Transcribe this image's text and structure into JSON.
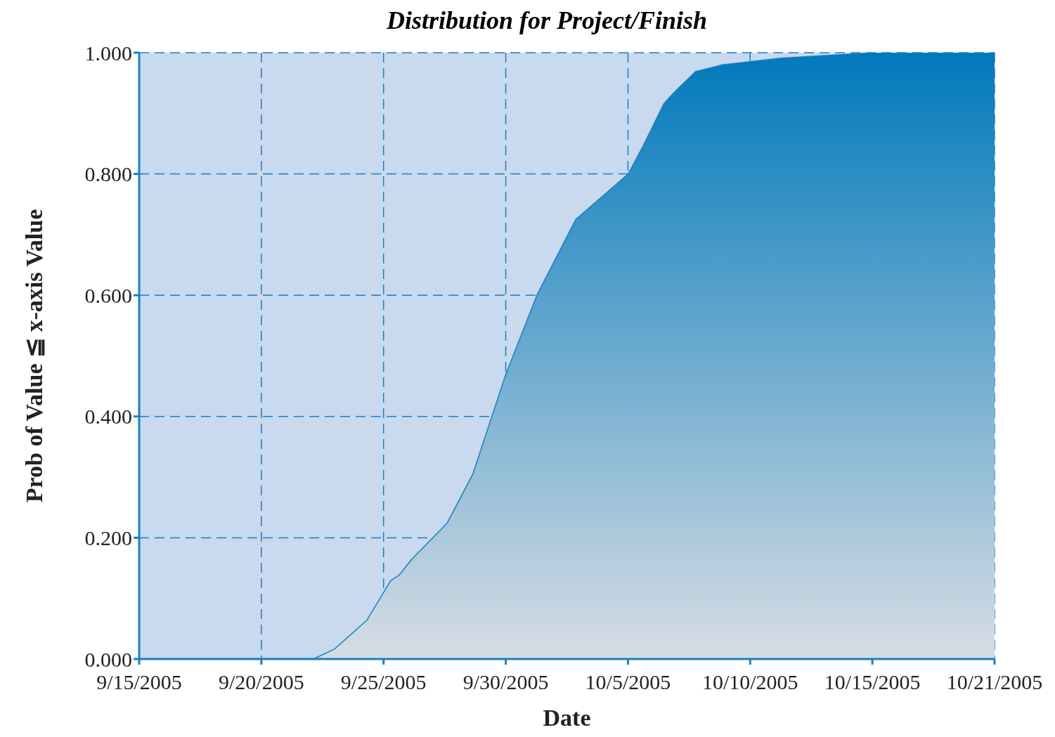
{
  "chart_data": {
    "type": "area",
    "title": "Distribution for Project/Finish",
    "xlabel": "Date",
    "ylabel": "Prob of Value ≦ x-axis Value",
    "x": [
      "2005-09-15T00:00",
      "2005-09-22T08:00",
      "2005-09-23T05:00",
      "2005-09-24T14:00",
      "2005-09-25T14:00",
      "2005-09-25T23:00",
      "2005-09-26T11:00",
      "2005-09-27T23:00",
      "2005-09-29T01:00",
      "2005-09-30T10:00",
      "2005-10-01T18:00",
      "2005-10-03T09:00",
      "2005-10-05T14:00",
      "2005-10-06T05:00",
      "2005-10-07T02:00",
      "2005-10-07T12:00",
      "2005-10-08T10:00",
      "2005-10-09T13:00",
      "2005-10-12T00:00",
      "2005-10-15T21:00",
      "2005-10-21T00:00"
    ],
    "series": [
      {
        "color": "#0079bc",
        "values": [
          0,
          0,
          0.016,
          0.064,
          0.129,
          0.139,
          0.164,
          0.224,
          0.305,
          0.468,
          0.601,
          0.725,
          0.8,
          0.846,
          0.916,
          0.934,
          0.969,
          0.98,
          0.991,
          1,
          1
        ]
      }
    ],
    "xlim": [
      "2005-09-15T00:00",
      "2005-10-21T00:00"
    ],
    "xticks": [
      {
        "value": "2005-09-15T00:00",
        "label": "9/15/2005"
      },
      {
        "value": "2005-09-20T03:26",
        "label": "9/20/2005"
      },
      {
        "value": "2005-09-25T06:51",
        "label": "9/25/2005"
      },
      {
        "value": "2005-09-30T10:17",
        "label": "9/30/2005"
      },
      {
        "value": "2005-10-05T13:43",
        "label": "10/5/2005"
      },
      {
        "value": "2005-10-10T17:09",
        "label": "10/10/2005"
      },
      {
        "value": "2005-10-15T20:34",
        "label": "10/15/2005"
      },
      {
        "value": "2005-10-21T00:00",
        "label": "10/21/2005"
      }
    ],
    "ylim": [
      0,
      1
    ],
    "yticks": [
      {
        "value": 0,
        "label": "0.000"
      },
      {
        "value": 0.2,
        "label": "0.200"
      },
      {
        "value": 0.4,
        "label": "0.400"
      },
      {
        "value": 0.6,
        "label": "0.600"
      },
      {
        "value": 0.8,
        "label": "0.800"
      },
      {
        "value": 1,
        "label": "1.000"
      }
    ],
    "grid": true,
    "line_style": "solid"
  }
}
